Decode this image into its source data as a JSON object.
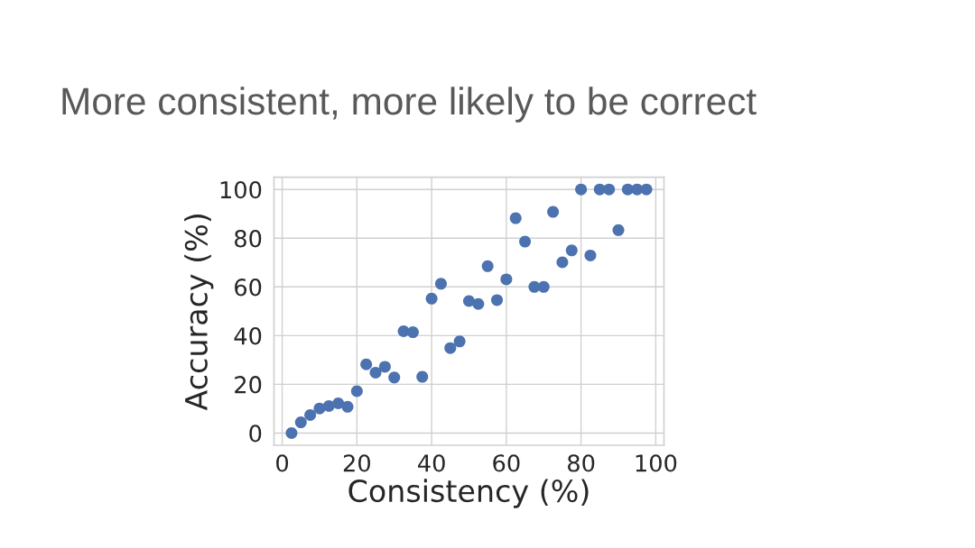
{
  "chart_data": {
    "type": "scatter",
    "title": "More consistent, more likely to be correct",
    "xlabel": "Consistency (%)",
    "ylabel": "Accuracy (%)",
    "x": [
      2.5,
      5,
      7.5,
      10,
      12.5,
      15,
      17.5,
      20,
      22.5,
      25,
      27.5,
      30,
      32.5,
      35,
      37.5,
      40,
      42.5,
      45,
      47.5,
      50,
      52.5,
      55,
      57.5,
      60,
      62.5,
      65,
      67.5,
      70,
      72.5,
      75,
      77.5,
      80,
      82.5,
      85,
      87.5,
      90,
      92.5,
      95,
      97.5
    ],
    "values": [
      0,
      4.4,
      7.4,
      10.1,
      11.1,
      12.2,
      10.8,
      17.2,
      28.2,
      24.8,
      27.2,
      22.8,
      41.8,
      41.4,
      23.1,
      55.2,
      61.3,
      34.9,
      37.6,
      54.2,
      53.0,
      68.5,
      54.6,
      63.1,
      88.2,
      78.6,
      60,
      60,
      90.8,
      70.1,
      75,
      100,
      72.9,
      100,
      100,
      83.3,
      100,
      100,
      100
    ],
    "color": "#4c72b0",
    "marker": "circle",
    "xlim": [
      -2.2,
      102.2
    ],
    "ylim": [
      -5,
      105
    ],
    "xticks": [
      0,
      20,
      40,
      60,
      80,
      100
    ],
    "yticks": [
      0,
      20,
      40,
      60,
      80,
      100
    ],
    "grid": true
  }
}
